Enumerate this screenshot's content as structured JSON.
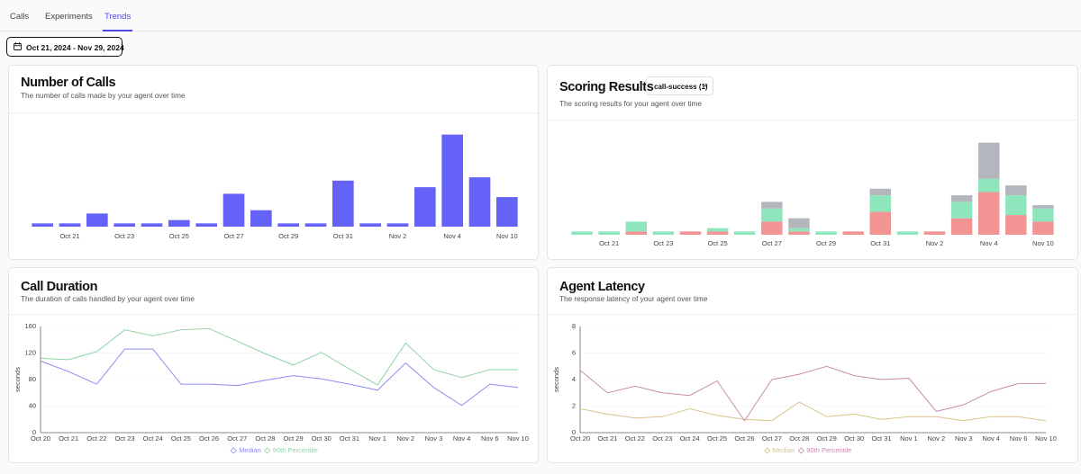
{
  "tabs": [
    "Calls",
    "Experiments",
    "Trends"
  ],
  "date_range": "Oct 21, 2024 - Nov 29, 2024",
  "chart_data": [
    {
      "type": "bar",
      "title": "Number of Calls",
      "subtitle": "The number of calls made by your agent over time",
      "categories": [
        null,
        "Oct 21",
        null,
        "Oct 23",
        null,
        "Oct 25",
        null,
        "Oct 27",
        null,
        "Oct 29",
        null,
        "Oct 31",
        null,
        "Nov 2",
        null,
        "Nov 4",
        null,
        "Nov 10"
      ],
      "values": [
        1,
        1,
        4,
        1,
        1,
        2,
        1,
        10,
        5,
        1,
        1,
        14,
        1,
        1,
        12,
        28,
        15,
        9
      ],
      "color": "#6563f7",
      "ylim": [
        0,
        32
      ]
    },
    {
      "type": "bar",
      "title": "Scoring Results",
      "dropdown": "call-success (1)",
      "subtitle": "The scoring results for your agent over time",
      "categories": [
        null,
        "Oct 21",
        null,
        "Oct 23",
        null,
        "Oct 25",
        null,
        "Oct 27",
        null,
        "Oct 29",
        null,
        "Oct 31",
        null,
        "Nov 2",
        null,
        "Nov 4",
        null,
        "Nov 10"
      ],
      "series": [
        {
          "color": "#f39494",
          "values": [
            0,
            0,
            1,
            0,
            1,
            1,
            0,
            4,
            1,
            0,
            1,
            7,
            0,
            1,
            5,
            13,
            6,
            4
          ]
        },
        {
          "color": "#8ee6bd",
          "values": [
            1,
            1,
            3,
            1,
            0,
            1,
            1,
            4,
            1,
            1,
            0,
            5,
            1,
            0,
            5,
            4,
            6,
            4
          ]
        },
        {
          "color": "#b4b6bd",
          "values": [
            0,
            0,
            0,
            0,
            0,
            0,
            0,
            2,
            3,
            0,
            0,
            2,
            0,
            0,
            2,
            11,
            3,
            1
          ]
        }
      ],
      "ylim": [
        0,
        32
      ]
    },
    {
      "type": "line",
      "title": "Call Duration",
      "subtitle": "The duration of calls handled by your agent over time",
      "ylabel": "seconds",
      "categories": [
        "Oct 20",
        "Oct 21",
        "Oct 22",
        "Oct 23",
        "Oct 24",
        "Oct 25",
        "Oct 26",
        "Oct 27",
        "Oct 28",
        "Oct 29",
        "Oct 30",
        "Oct 31",
        "Nov 1",
        "Nov 2",
        "Nov 3",
        "Nov 4",
        "Nov 6",
        "Nov 10"
      ],
      "series": [
        {
          "name": "Median",
          "color": "#8b8cf0",
          "values": [
            108,
            92,
            73,
            126,
            126,
            73,
            73,
            71,
            79,
            86,
            81,
            73,
            64,
            105,
            68,
            41,
            73,
            68
          ]
        },
        {
          "name": "90th Percentile",
          "color": "#8fd3a6",
          "values": [
            112,
            110,
            122,
            155,
            146,
            155,
            157,
            138,
            119,
            102,
            121,
            96,
            72,
            135,
            95,
            83,
            95,
            95
          ]
        }
      ],
      "ylim": [
        0,
        160
      ],
      "yticks": [
        0,
        40,
        80,
        120,
        160
      ],
      "grid": true
    },
    {
      "type": "line",
      "title": "Agent Latency",
      "subtitle": "The response latency of your agent over time",
      "ylabel": "seconds",
      "categories": [
        "Oct 20",
        "Oct 21",
        "Oct 22",
        "Oct 23",
        "Oct 24",
        "Oct 25",
        "Oct 26",
        "Oct 27",
        "Oct 28",
        "Oct 29",
        "Oct 30",
        "Oct 31",
        "Nov 1",
        "Nov 2",
        "Nov 3",
        "Nov 4",
        "Nov 6",
        "Nov 10"
      ],
      "series": [
        {
          "name": "Median",
          "color": "#d8c48e",
          "values": [
            1.8,
            1.4,
            1.1,
            1.2,
            1.8,
            1.3,
            1.0,
            0.9,
            2.3,
            1.2,
            1.4,
            1.0,
            1.2,
            1.2,
            0.9,
            1.2,
            1.2,
            0.9
          ]
        },
        {
          "name": "90th Percentile",
          "color": "#c98bb0",
          "values": [
            4.7,
            3.0,
            3.5,
            3.0,
            2.8,
            3.9,
            0.9,
            4.0,
            4.4,
            5.0,
            4.3,
            4.0,
            4.1,
            1.6,
            2.1,
            3.1,
            3.7,
            3.7
          ]
        }
      ],
      "ylim": [
        0,
        8
      ],
      "yticks": [
        0,
        2,
        4,
        6,
        8
      ],
      "grid": true
    }
  ]
}
